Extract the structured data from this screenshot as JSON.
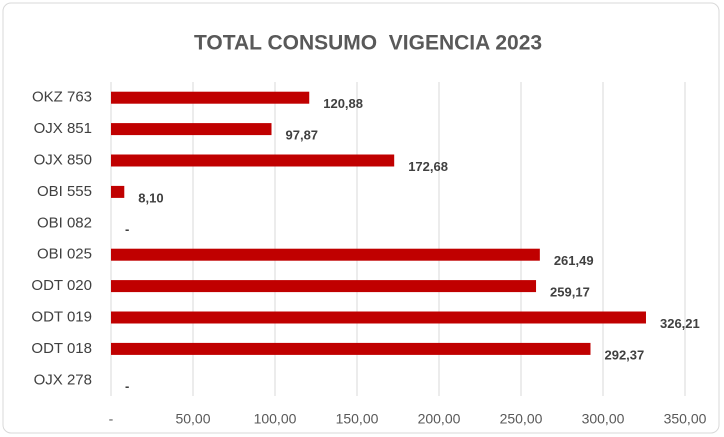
{
  "chart_data": {
    "type": "bar",
    "orientation": "horizontal",
    "title": "TOTAL CONSUMO  VIGENCIA 2023",
    "categories": [
      "OKZ 763",
      "OJX 851",
      "OJX 850",
      "OBI 555",
      "OBI 082",
      "OBI 025",
      "ODT 020",
      "ODT 019",
      "ODT 018",
      "OJX 278"
    ],
    "values": [
      120.88,
      97.87,
      172.68,
      8.1,
      0,
      261.49,
      259.17,
      326.21,
      292.37,
      0
    ],
    "value_labels": [
      "120,88",
      "97,87",
      "172,68",
      "8,10",
      "-",
      "261,49",
      "259,17",
      "326,21",
      "292,37",
      "-"
    ],
    "color": "#c00000",
    "xlim": [
      0,
      350
    ],
    "xticks": [
      {
        "value": 0,
        "label": "-"
      },
      {
        "value": 50,
        "label": "50,00"
      },
      {
        "value": 100,
        "label": "100,00"
      },
      {
        "value": 150,
        "label": "150,00"
      },
      {
        "value": 200,
        "label": "200,00"
      },
      {
        "value": 250,
        "label": "250,00"
      },
      {
        "value": 300,
        "label": "300,00"
      },
      {
        "value": 350,
        "label": "350,00"
      }
    ],
    "grid": true
  }
}
